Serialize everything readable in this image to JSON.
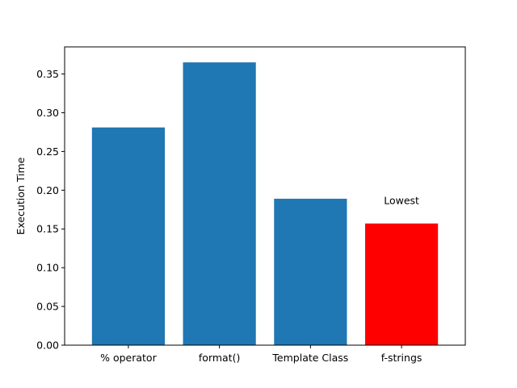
{
  "chart_data": {
    "type": "bar",
    "title": "",
    "xlabel": "",
    "ylabel": "Execution Time",
    "categories": [
      "% operator",
      "format()",
      "Template Class",
      "f-strings"
    ],
    "values": [
      0.281,
      0.365,
      0.189,
      0.157
    ],
    "ylim": [
      0.0,
      0.385
    ],
    "yticks": [
      0.0,
      0.05,
      0.1,
      0.15,
      0.2,
      0.25,
      0.3,
      0.35
    ],
    "ytick_labels": [
      "0.00",
      "0.05",
      "0.10",
      "0.15",
      "0.20",
      "0.25",
      "0.30",
      "0.35"
    ],
    "grid": false,
    "legend": "none",
    "bar_colors": [
      "#1f77b4",
      "#1f77b4",
      "#1f77b4",
      "#ff0000"
    ],
    "annotations": [
      {
        "text": "Lowest",
        "category": "f-strings",
        "y": 0.187
      }
    ]
  }
}
